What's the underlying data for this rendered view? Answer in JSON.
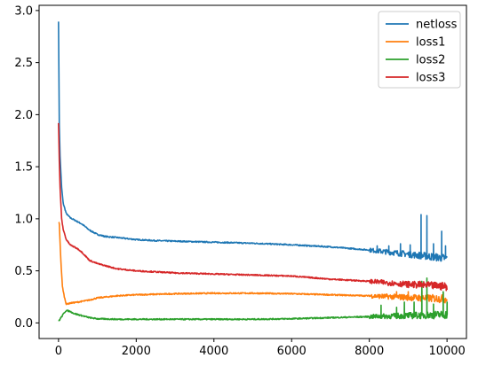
{
  "chart_data": {
    "type": "line",
    "title": "",
    "xlabel": "",
    "ylabel": "",
    "xlim": [
      -500,
      10500
    ],
    "ylim": [
      -0.15,
      3.05
    ],
    "xticks": [
      0,
      2000,
      4000,
      6000,
      8000,
      10000
    ],
    "xtick_labels": [
      "0",
      "2000",
      "4000",
      "6000",
      "8000",
      "10000"
    ],
    "yticks": [
      0.0,
      0.5,
      1.0,
      1.5,
      2.0,
      2.5,
      3.0
    ],
    "ytick_labels": [
      "0.0",
      "0.5",
      "1.0",
      "1.5",
      "2.0",
      "2.5",
      "3.0"
    ],
    "grid": false,
    "legend_position": "top-right",
    "series": [
      {
        "name": "netloss",
        "color": "#1f77b4",
        "x": [
          0,
          20,
          40,
          80,
          120,
          200,
          300,
          400,
          500,
          600,
          700,
          800,
          1000,
          1200,
          1500,
          2000,
          2500,
          3000,
          4000,
          5000,
          6000,
          7000,
          8000,
          8500,
          9000,
          9500,
          10000
        ],
        "y": [
          2.9,
          1.9,
          1.6,
          1.3,
          1.15,
          1.05,
          1.01,
          0.99,
          0.97,
          0.95,
          0.92,
          0.89,
          0.85,
          0.83,
          0.82,
          0.8,
          0.79,
          0.785,
          0.775,
          0.765,
          0.75,
          0.73,
          0.7,
          0.68,
          0.66,
          0.64,
          0.62
        ],
        "spikes": [
          {
            "x": 8200,
            "y": 0.74
          },
          {
            "x": 8500,
            "y": 0.74
          },
          {
            "x": 8800,
            "y": 0.76
          },
          {
            "x": 9050,
            "y": 0.75
          },
          {
            "x": 9330,
            "y": 1.04
          },
          {
            "x": 9480,
            "y": 1.03
          },
          {
            "x": 9650,
            "y": 0.76
          },
          {
            "x": 9860,
            "y": 0.88
          },
          {
            "x": 9960,
            "y": 0.74
          }
        ]
      },
      {
        "name": "loss1",
        "color": "#ff7f0e",
        "x": [
          0,
          20,
          60,
          100,
          150,
          200,
          300,
          500,
          800,
          1000,
          1500,
          2000,
          3000,
          4000,
          5000,
          6000,
          7000,
          8000,
          9000,
          10000
        ],
        "y": [
          0.97,
          0.95,
          0.6,
          0.35,
          0.25,
          0.18,
          0.19,
          0.2,
          0.22,
          0.24,
          0.26,
          0.27,
          0.28,
          0.285,
          0.285,
          0.28,
          0.27,
          0.26,
          0.245,
          0.23
        ],
        "spikes": [
          {
            "x": 8700,
            "y": 0.3
          },
          {
            "x": 9000,
            "y": 0.3
          },
          {
            "x": 9350,
            "y": 0.31
          },
          {
            "x": 9900,
            "y": 0.29
          }
        ]
      },
      {
        "name": "loss2",
        "color": "#2ca02c",
        "x": [
          0,
          30,
          60,
          100,
          150,
          200,
          300,
          400,
          500,
          800,
          1000,
          1500,
          2000,
          3000,
          4000,
          5000,
          6000,
          7000,
          8000,
          9000,
          10000
        ],
        "y": [
          0.02,
          0.03,
          0.05,
          0.07,
          0.1,
          0.12,
          0.11,
          0.09,
          0.08,
          0.05,
          0.04,
          0.035,
          0.035,
          0.035,
          0.035,
          0.035,
          0.04,
          0.05,
          0.06,
          0.07,
          0.08
        ],
        "spikes": [
          {
            "x": 8300,
            "y": 0.17
          },
          {
            "x": 8700,
            "y": 0.15
          },
          {
            "x": 8900,
            "y": 0.2
          },
          {
            "x": 9150,
            "y": 0.2
          },
          {
            "x": 9350,
            "y": 0.4
          },
          {
            "x": 9480,
            "y": 0.43
          },
          {
            "x": 9650,
            "y": 0.18
          },
          {
            "x": 9900,
            "y": 0.3
          },
          {
            "x": 10000,
            "y": 0.2
          }
        ]
      },
      {
        "name": "loss3",
        "color": "#d62728",
        "x": [
          0,
          20,
          40,
          80,
          120,
          200,
          300,
          400,
          500,
          600,
          700,
          800,
          1000,
          1200,
          1500,
          2000,
          2500,
          3000,
          4000,
          5000,
          6000,
          7000,
          8000,
          9000,
          10000
        ],
        "y": [
          1.92,
          1.55,
          1.3,
          1.0,
          0.9,
          0.8,
          0.75,
          0.73,
          0.71,
          0.68,
          0.64,
          0.6,
          0.57,
          0.55,
          0.52,
          0.5,
          0.49,
          0.48,
          0.47,
          0.46,
          0.45,
          0.42,
          0.4,
          0.37,
          0.35
        ],
        "spikes": [
          {
            "x": 9300,
            "y": 0.4
          },
          {
            "x": 9480,
            "y": 0.39
          },
          {
            "x": 9850,
            "y": 0.38
          }
        ]
      }
    ]
  }
}
